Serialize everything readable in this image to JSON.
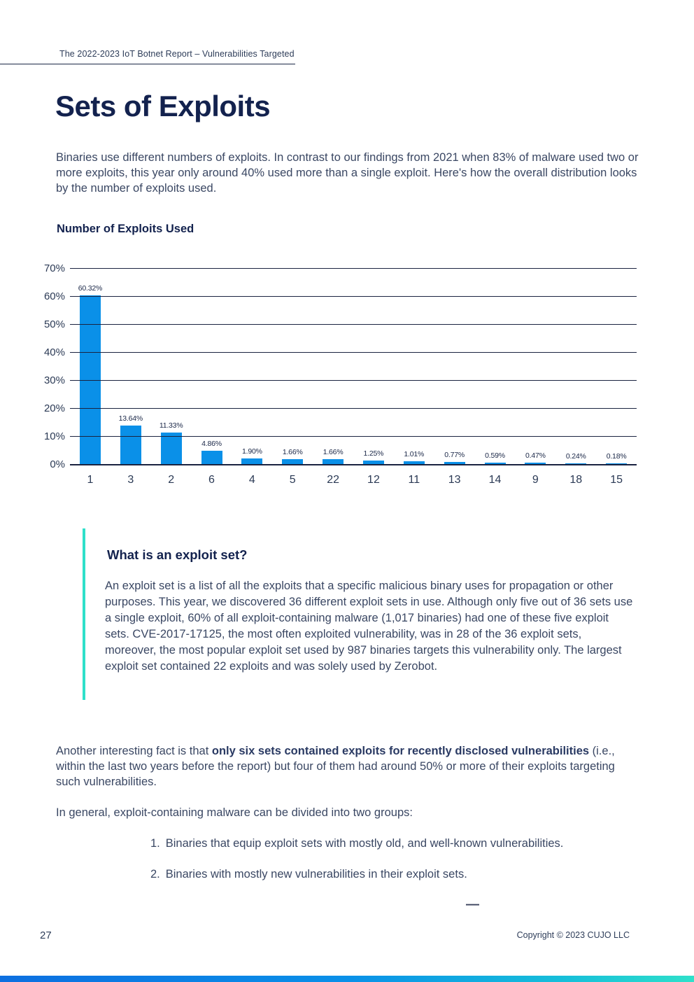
{
  "header": {
    "breadcrumb": "The 2022-2023 IoT Botnet Report – Vulnerabilities Targeted"
  },
  "page": {
    "title": "Sets of Exploits",
    "intro": "Binaries use different numbers of exploits. In contrast to our findings from 2021 when 83% of malware used two or more exploits, this year only around 40% used more than a single exploit. Here's how the overall distribution looks by the number of exploits used."
  },
  "chart_data": {
    "type": "bar",
    "title": "Number of Exploits Used",
    "categories": [
      "1",
      "3",
      "2",
      "6",
      "4",
      "5",
      "22",
      "12",
      "11",
      "13",
      "14",
      "9",
      "18",
      "15"
    ],
    "values": [
      60.32,
      13.64,
      11.33,
      4.86,
      1.9,
      1.66,
      1.66,
      1.25,
      1.01,
      0.77,
      0.59,
      0.47,
      0.24,
      0.18
    ],
    "value_labels": [
      "60.32%",
      "13.64%",
      "11.33%",
      "4.86%",
      "1.90%",
      "1.66%",
      "1.66%",
      "1.25%",
      "1.01%",
      "0.77%",
      "0.59%",
      "0.47%",
      "0.24%",
      "0.18%"
    ],
    "y_ticks": [
      "70%",
      "60%",
      "50%",
      "40%",
      "30%",
      "20%",
      "10%",
      "0%"
    ],
    "xlabel": "",
    "ylabel": "",
    "ylim": [
      0,
      70
    ],
    "grid": true,
    "legend_position": "none",
    "bar_color": "#0a90e8"
  },
  "callout": {
    "heading": "What is an exploit set?",
    "body": "An exploit set is a list of all the exploits that a specific malicious binary uses for propagation or other purposes. This year, we discovered 36 different exploit sets in use. Although only five out of 36 sets use a single exploit, 60% of all exploit-containing malware (1,017 binaries) had one of these five exploit sets. CVE-2017-17125, the most often exploited vulnerability, was in 28 of the 36 exploit sets, moreover, the most popular exploit set used by 987 binaries targets this vulnerability only. The largest exploit set contained 22 exploits and was solely used by Zerobot.",
    "accent_color": "#2fe0ca"
  },
  "body": {
    "para1_prefix": "Another interesting fact is that ",
    "para1_bold": "only six sets contained exploits for recently disclosed vulnerabilities",
    "para1_suffix": " (i.e., within the last two years before the report) but four of them had around 50% or more of their exploits targeting such vulnerabilities.",
    "para2": "In general, exploit-containing malware can be divided into two groups:",
    "list": [
      {
        "num": "1.",
        "text": "Binaries that equip exploit sets with mostly old, and well-known vulnerabilities."
      },
      {
        "num": "2.",
        "text": "Binaries with mostly new vulnerabilities in their exploit sets."
      }
    ],
    "divider": "—"
  },
  "footer": {
    "page_number": "27",
    "copyright": "Copyright © 2023 CUJO LLC"
  }
}
